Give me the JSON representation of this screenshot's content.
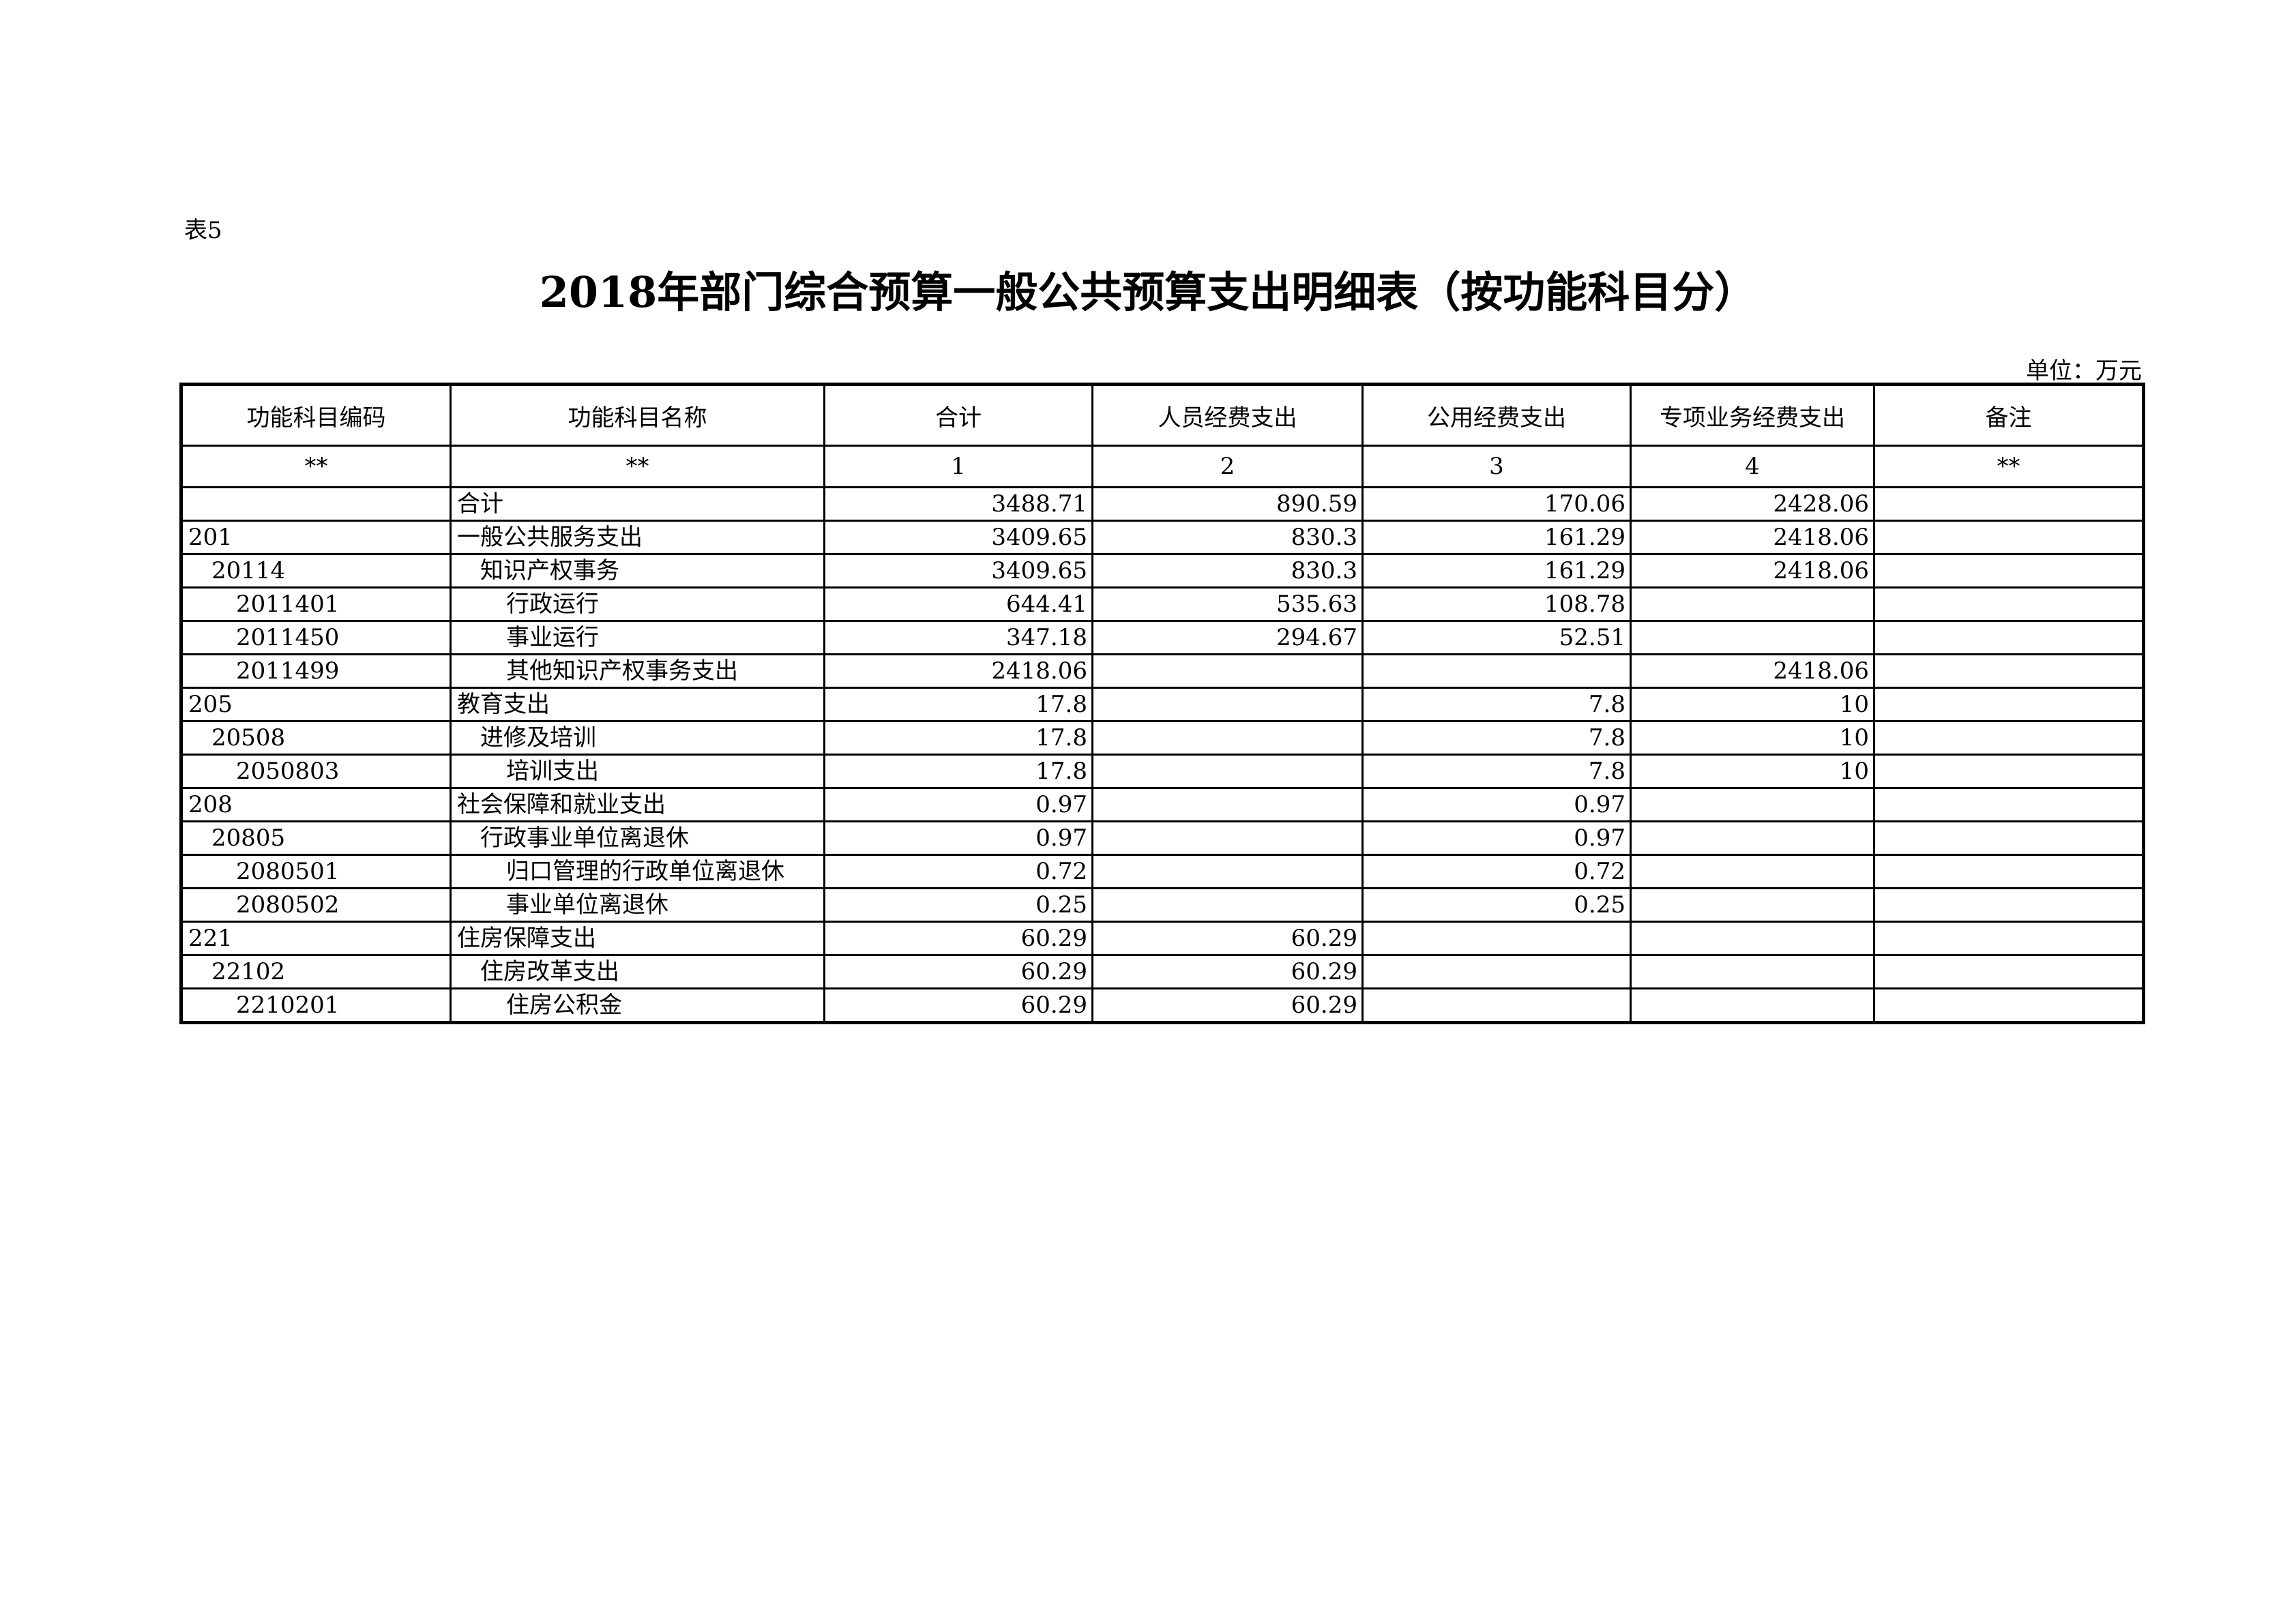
{
  "sheet_label": "表5",
  "title": "2018年部门综合预算一般公共预算支出明细表（按功能科目分）",
  "unit": "单位：万元",
  "table": {
    "headers": [
      "功能科目编码",
      "功能科目名称",
      "合计",
      "人员经费支出",
      "公用经费支出",
      "专项业务经费支出",
      "备注"
    ],
    "index_row": [
      "**",
      "**",
      "1",
      "2",
      "3",
      "4",
      "**"
    ],
    "rows": [
      {
        "level": 0,
        "code": "",
        "name": "合计",
        "total": "3488.71",
        "personnel": "890.59",
        "public": "170.06",
        "special": "2428.06",
        "note": ""
      },
      {
        "level": 0,
        "code": "201",
        "name": "一般公共服务支出",
        "total": "3409.65",
        "personnel": "830.3",
        "public": "161.29",
        "special": "2418.06",
        "note": ""
      },
      {
        "level": 1,
        "code": "20114",
        "name": "知识产权事务",
        "total": "3409.65",
        "personnel": "830.3",
        "public": "161.29",
        "special": "2418.06",
        "note": ""
      },
      {
        "level": 2,
        "code": "2011401",
        "name": "行政运行",
        "total": "644.41",
        "personnel": "535.63",
        "public": "108.78",
        "special": "",
        "note": ""
      },
      {
        "level": 2,
        "code": "2011450",
        "name": "事业运行",
        "total": "347.18",
        "personnel": "294.67",
        "public": "52.51",
        "special": "",
        "note": ""
      },
      {
        "level": 2,
        "code": "2011499",
        "name": "其他知识产权事务支出",
        "total": "2418.06",
        "personnel": "",
        "public": "",
        "special": "2418.06",
        "note": ""
      },
      {
        "level": 0,
        "code": "205",
        "name": "教育支出",
        "total": "17.8",
        "personnel": "",
        "public": "7.8",
        "special": "10",
        "note": ""
      },
      {
        "level": 1,
        "code": "20508",
        "name": "进修及培训",
        "total": "17.8",
        "personnel": "",
        "public": "7.8",
        "special": "10",
        "note": ""
      },
      {
        "level": 2,
        "code": "2050803",
        "name": "培训支出",
        "total": "17.8",
        "personnel": "",
        "public": "7.8",
        "special": "10",
        "note": ""
      },
      {
        "level": 0,
        "code": "208",
        "name": "社会保障和就业支出",
        "total": "0.97",
        "personnel": "",
        "public": "0.97",
        "special": "",
        "note": ""
      },
      {
        "level": 1,
        "code": "20805",
        "name": "行政事业单位离退休",
        "total": "0.97",
        "personnel": "",
        "public": "0.97",
        "special": "",
        "note": ""
      },
      {
        "level": 2,
        "code": "2080501",
        "name": "归口管理的行政单位离退休",
        "total": "0.72",
        "personnel": "",
        "public": "0.72",
        "special": "",
        "note": ""
      },
      {
        "level": 2,
        "code": "2080502",
        "name": "事业单位离退休",
        "total": "0.25",
        "personnel": "",
        "public": "0.25",
        "special": "",
        "note": ""
      },
      {
        "level": 0,
        "code": "221",
        "name": "住房保障支出",
        "total": "60.29",
        "personnel": "60.29",
        "public": "",
        "special": "",
        "note": ""
      },
      {
        "level": 1,
        "code": "22102",
        "name": "住房改革支出",
        "total": "60.29",
        "personnel": "60.29",
        "public": "",
        "special": "",
        "note": ""
      },
      {
        "level": 2,
        "code": "2210201",
        "name": "住房公积金",
        "total": "60.29",
        "personnel": "60.29",
        "public": "",
        "special": "",
        "note": ""
      }
    ]
  }
}
